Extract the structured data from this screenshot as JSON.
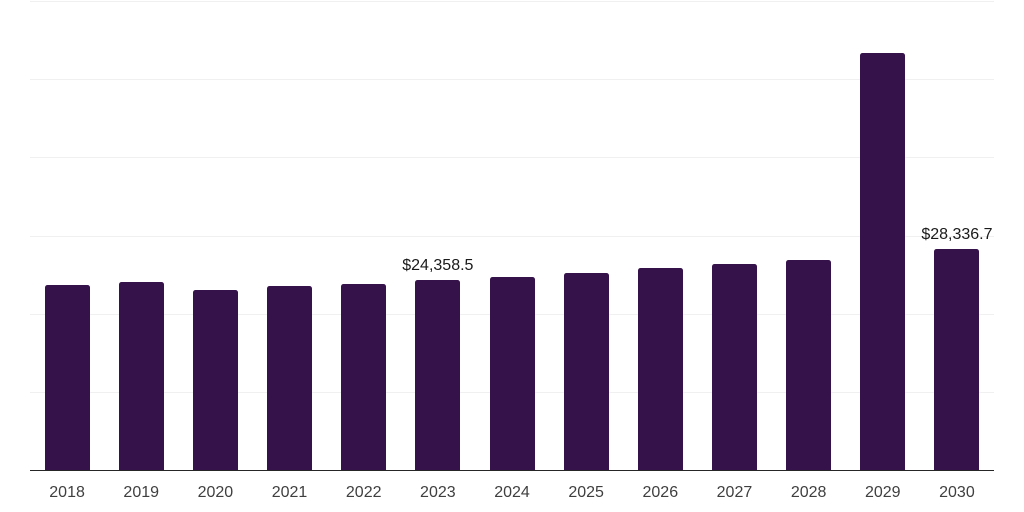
{
  "chart_data": {
    "type": "bar",
    "title": "",
    "xlabel": "",
    "ylabel": "",
    "categories": [
      "2018",
      "2019",
      "2020",
      "2021",
      "2022",
      "2023",
      "2024",
      "2025",
      "2026",
      "2027",
      "2028",
      "2029",
      "2030"
    ],
    "values": [
      23700,
      24000,
      23000,
      23550,
      23800,
      24358.5,
      24750,
      25200,
      25800,
      26400,
      26900,
      53400,
      28336.7
    ],
    "data_labels": [
      "",
      "",
      "",
      "",
      "",
      "$24,358.5",
      "",
      "",
      "",
      "",
      "",
      "",
      "$28,336.7"
    ],
    "ylim": [
      0,
      60000
    ],
    "gridline_step": 10000,
    "grid": true,
    "legend_position": "none"
  },
  "colors": {
    "background": "#ffffff",
    "bar": "#36124b",
    "gridline": "#f0f0f0",
    "axis_line": "#262626",
    "tick_label": "#3f3f3f",
    "value_label": "#1a1a1a"
  }
}
